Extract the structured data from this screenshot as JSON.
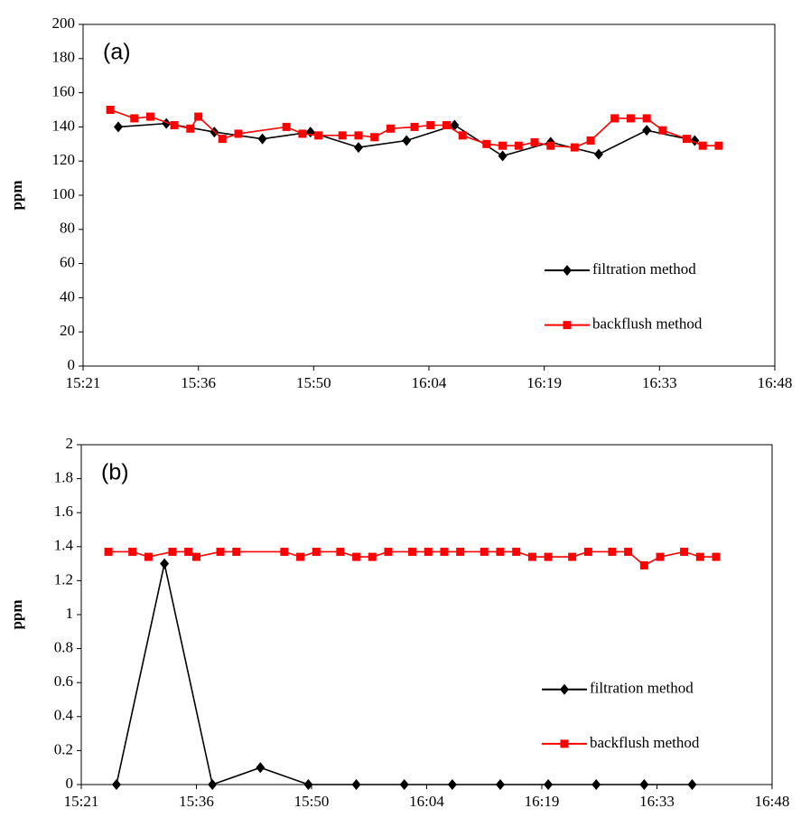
{
  "chart_data": [
    {
      "type": "line",
      "annotation": "(a)",
      "ylabel": "ppm",
      "xlim": [
        921.6,
        1008
      ],
      "xticks": [
        {
          "value": 921.6,
          "label": "15:21"
        },
        {
          "value": 936,
          "label": "15:36"
        },
        {
          "value": 950.4,
          "label": "15:50"
        },
        {
          "value": 964.8,
          "label": "16:04"
        },
        {
          "value": 979.2,
          "label": "16:19"
        },
        {
          "value": 993.6,
          "label": "16:33"
        },
        {
          "value": 1008,
          "label": "16:48"
        }
      ],
      "ylim": [
        0,
        200
      ],
      "yticks": [
        0,
        20,
        40,
        60,
        80,
        100,
        120,
        140,
        160,
        180,
        200
      ],
      "legend": "lower right",
      "series": [
        {
          "name": "filtration method",
          "color": "#000000",
          "marker": "diamond",
          "x": [
            926,
            932,
            938,
            944,
            950,
            956,
            962,
            968,
            974,
            980,
            986,
            992,
            998
          ],
          "values": [
            140,
            142,
            137,
            133,
            137,
            128,
            132,
            141,
            123,
            131,
            124,
            138,
            132
          ]
        },
        {
          "name": "backflush method",
          "color": "#ff0000",
          "marker": "square",
          "x": [
            925,
            928,
            930,
            933,
            935,
            936,
            939,
            941,
            947,
            949,
            951,
            954,
            956,
            958,
            960,
            963,
            965,
            967,
            969,
            972,
            974,
            976,
            978,
            980,
            983,
            985,
            988,
            990,
            992,
            994,
            997,
            999,
            1001
          ],
          "values": [
            150,
            145,
            146,
            141,
            139,
            146,
            133,
            136,
            140,
            136,
            135,
            135,
            135,
            134,
            139,
            140,
            141,
            141,
            135,
            130,
            129,
            129,
            131,
            129,
            128,
            132,
            145,
            145,
            145,
            138,
            133,
            129,
            129
          ]
        }
      ]
    },
    {
      "type": "line",
      "annotation": "(b)",
      "ylabel": "ppm",
      "xlim": [
        921.6,
        1008
      ],
      "xticks": [
        {
          "value": 921.6,
          "label": "15:21"
        },
        {
          "value": 936,
          "label": "15:36"
        },
        {
          "value": 950.4,
          "label": "15:50"
        },
        {
          "value": 964.8,
          "label": "16:04"
        },
        {
          "value": 979.2,
          "label": "16:19"
        },
        {
          "value": 993.6,
          "label": "16:33"
        },
        {
          "value": 1008,
          "label": "16:48"
        }
      ],
      "ylim": [
        0,
        2
      ],
      "yticks": [
        0,
        0.2,
        0.4,
        0.6,
        0.8,
        1,
        1.2,
        1.4,
        1.6,
        1.8,
        2
      ],
      "legend": "lower right",
      "series": [
        {
          "name": "filtration method",
          "color": "#000000",
          "marker": "diamond",
          "x": [
            926,
            932,
            938,
            944,
            950,
            956,
            962,
            968,
            974,
            980,
            986,
            992,
            998
          ],
          "values": [
            0,
            1.3,
            0,
            0.1,
            0,
            0,
            0,
            0,
            0,
            0,
            0,
            0,
            0
          ]
        },
        {
          "name": "backflush method",
          "color": "#ff0000",
          "marker": "square",
          "x": [
            925,
            928,
            930,
            933,
            935,
            936,
            939,
            941,
            947,
            949,
            951,
            954,
            956,
            958,
            960,
            963,
            965,
            967,
            969,
            972,
            974,
            976,
            978,
            980,
            983,
            985,
            988,
            990,
            992,
            994,
            997,
            999,
            1001
          ],
          "values": [
            1.37,
            1.37,
            1.34,
            1.37,
            1.37,
            1.34,
            1.37,
            1.37,
            1.37,
            1.34,
            1.37,
            1.37,
            1.34,
            1.34,
            1.37,
            1.37,
            1.37,
            1.37,
            1.37,
            1.37,
            1.37,
            1.37,
            1.34,
            1.34,
            1.34,
            1.37,
            1.37,
            1.37,
            1.29,
            1.34,
            1.37,
            1.34,
            1.34
          ]
        }
      ]
    }
  ]
}
